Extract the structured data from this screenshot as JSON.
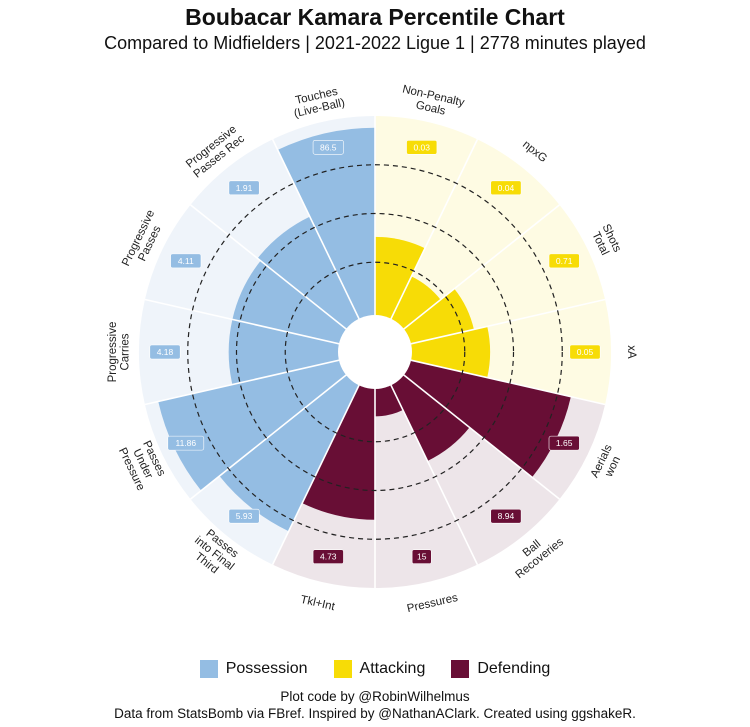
{
  "chart_data": {
    "type": "pie",
    "subtype": "polar-bar",
    "title": "Boubacar Kamara Percentile Chart",
    "subtitle": "Compared to Midfielders  | 2021-2022 Ligue 1  | 2778 minutes played",
    "rlim": [
      0,
      100
    ],
    "gridlines": [
      25,
      50,
      75
    ],
    "categories": [
      {
        "label": [
          "Non-Penalty",
          "Goals"
        ],
        "group": "Attacking",
        "value": "0.03",
        "percentile": 38
      },
      {
        "label": [
          "npxG"
        ],
        "group": "Attacking",
        "value": "0.04",
        "percentile": 22
      },
      {
        "label": [
          "Shots",
          "Total"
        ],
        "group": "Attacking",
        "value": "0.71",
        "percentile": 31
      },
      {
        "label": [
          "xA"
        ],
        "group": "Attacking",
        "value": "0.05",
        "percentile": 38
      },
      {
        "label": [
          "Aerials",
          "won"
        ],
        "group": "Defending",
        "value": "1.65",
        "percentile": 82
      },
      {
        "label": [
          "Ball",
          "Recoveries"
        ],
        "group": "Defending",
        "value": "8.94",
        "percentile": 41
      },
      {
        "label": [
          "Pressures"
        ],
        "group": "Defending",
        "value": "15",
        "percentile": 12
      },
      {
        "label": [
          "Tkl+Int"
        ],
        "group": "Defending",
        "value": "4.73",
        "percentile": 65
      },
      {
        "label": [
          "Passes",
          "into Final",
          "Third"
        ],
        "group": "Possession",
        "value": "5.93",
        "percentile": 81
      },
      {
        "label": [
          "Passes",
          "Under",
          "Pressure"
        ],
        "group": "Possession",
        "value": "11.86",
        "percentile": 93
      },
      {
        "label": [
          "Progressive",
          "Carries"
        ],
        "group": "Possession",
        "value": "4.18",
        "percentile": 54
      },
      {
        "label": [
          "Progressive",
          "Passes"
        ],
        "group": "Possession",
        "value": "4.11",
        "percentile": 54
      },
      {
        "label": [
          "Progressive",
          "Passes Rec"
        ],
        "group": "Possession",
        "value": "1.91",
        "percentile": 56
      },
      {
        "label": [
          "Touches",
          "(Live-Ball)"
        ],
        "group": "Possession",
        "value": "86.5",
        "percentile": 94
      }
    ],
    "legend": [
      {
        "name": "Possession",
        "color": "#94bde3",
        "bg": "#eff4fa"
      },
      {
        "name": "Attacking",
        "color": "#f7dc06",
        "bg": "#fefbe3"
      },
      {
        "name": "Defending",
        "color": "#680e35",
        "bg": "#ede5e9"
      }
    ],
    "legend_position": "bottom"
  },
  "credits": [
    "Plot code by @RobinWilhelmus",
    "Data from StatsBomb via FBref. Inspired by @NathanAClark. Created using ggshakeR."
  ]
}
